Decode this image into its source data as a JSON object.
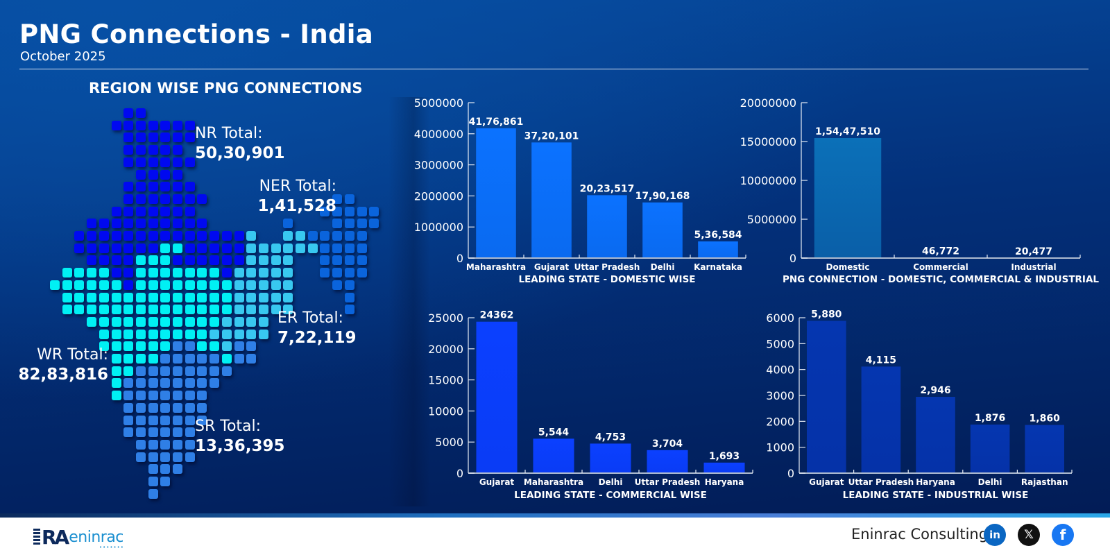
{
  "header": {
    "title": "PNG Connections - India",
    "subtitle": "October 2025"
  },
  "map": {
    "title": "REGION WISE PNG CONNECTIONS",
    "colors": {
      "NR": "#0009f0",
      "NER": "#0a64dc",
      "ER": "#38c8f0",
      "WR": "#00f0f4",
      "SR": "#2f7fe6"
    },
    "regions": [
      {
        "code": "NR",
        "label": "NR Total:",
        "value": "50,30,901"
      },
      {
        "code": "NER",
        "label": "NER Total:",
        "value": "1,41,528"
      },
      {
        "code": "ER",
        "label": "ER Total:",
        "value": "7,22,119"
      },
      {
        "code": "WR",
        "label": "WR Total:",
        "value": "82,83,816"
      },
      {
        "code": "SR",
        "label": "SR Total:",
        "value": "13,36,395"
      }
    ]
  },
  "chart_data": [
    {
      "id": "domestic",
      "type": "bar",
      "title": "LEADING STATE - DOMESTIC WISE",
      "categories": [
        "Maharashtra",
        "Gujarat",
        "Uttar Pradesh",
        "Delhi",
        "Karnataka"
      ],
      "values": [
        4176861,
        3720101,
        2023517,
        1790168,
        536584
      ],
      "value_labels": [
        "41,76,861",
        "37,20,101",
        "20,23,517",
        "17,90,168",
        "5,36,584"
      ],
      "ylim": [
        0,
        5000000
      ],
      "yticks": [
        0,
        1000000,
        2000000,
        3000000,
        4000000,
        5000000
      ],
      "bar_color": "#0a6af0",
      "bar_color_top": "#0b72ff",
      "xlabel": "",
      "ylabel": ""
    },
    {
      "id": "segment",
      "type": "bar",
      "title": "PNG CONNECTION -  DOMESTIC, COMMERCIAL & INDUSTRIAL",
      "categories": [
        "Domestic",
        "Commercial",
        "Industrial"
      ],
      "values": [
        15447510,
        46772,
        20477
      ],
      "value_labels": [
        "1,54,47,510",
        "46,772",
        "20,477"
      ],
      "ylim": [
        0,
        20000000
      ],
      "yticks": [
        0,
        5000000,
        10000000,
        15000000,
        20000000
      ],
      "bar_color": "#0a5fa8",
      "bar_color_top": "#0b70b8",
      "xlabel": "",
      "ylabel": ""
    },
    {
      "id": "commercial",
      "type": "bar",
      "title": "LEADING STATE - COMMERCIAL WISE",
      "categories": [
        "Gujarat",
        "Maharashtra",
        "Delhi",
        "Uttar Pradesh",
        "Haryana"
      ],
      "values": [
        24362,
        5544,
        4753,
        3704,
        1693
      ],
      "value_labels": [
        "24362",
        "5,544",
        "4,753",
        "3,704",
        "1,693"
      ],
      "ylim": [
        0,
        25000
      ],
      "yticks": [
        0,
        5000,
        10000,
        15000,
        20000,
        25000
      ],
      "bar_color": "#0a3cf5",
      "bar_color_top": "#0b40ff",
      "xlabel": "",
      "ylabel": ""
    },
    {
      "id": "industrial",
      "type": "bar",
      "title": "LEADING STATE - INDUSTRIAL WISE",
      "categories": [
        "Gujarat",
        "Uttar Pradesh",
        "Haryana",
        "Delhi",
        "Rajasthan"
      ],
      "values": [
        5880,
        4115,
        2946,
        1876,
        1860
      ],
      "value_labels": [
        "5,880",
        "4,115",
        "2,946",
        "1,876",
        "1,860"
      ],
      "ylim": [
        0,
        6000
      ],
      "yticks": [
        0,
        1000,
        2000,
        3000,
        4000,
        5000,
        6000
      ],
      "bar_color": "#0532a8",
      "bar_color_top": "#0536b0",
      "xlabel": "",
      "ylabel": ""
    }
  ],
  "footer": {
    "logo_mark": "RA",
    "logo_text": "eninrac",
    "logo_dots": "•••••••",
    "company": "Eninrac Consulting",
    "social": [
      {
        "name": "linkedin",
        "glyph": "in"
      },
      {
        "name": "x",
        "glyph": "𝕏"
      },
      {
        "name": "facebook",
        "glyph": "f"
      }
    ]
  }
}
